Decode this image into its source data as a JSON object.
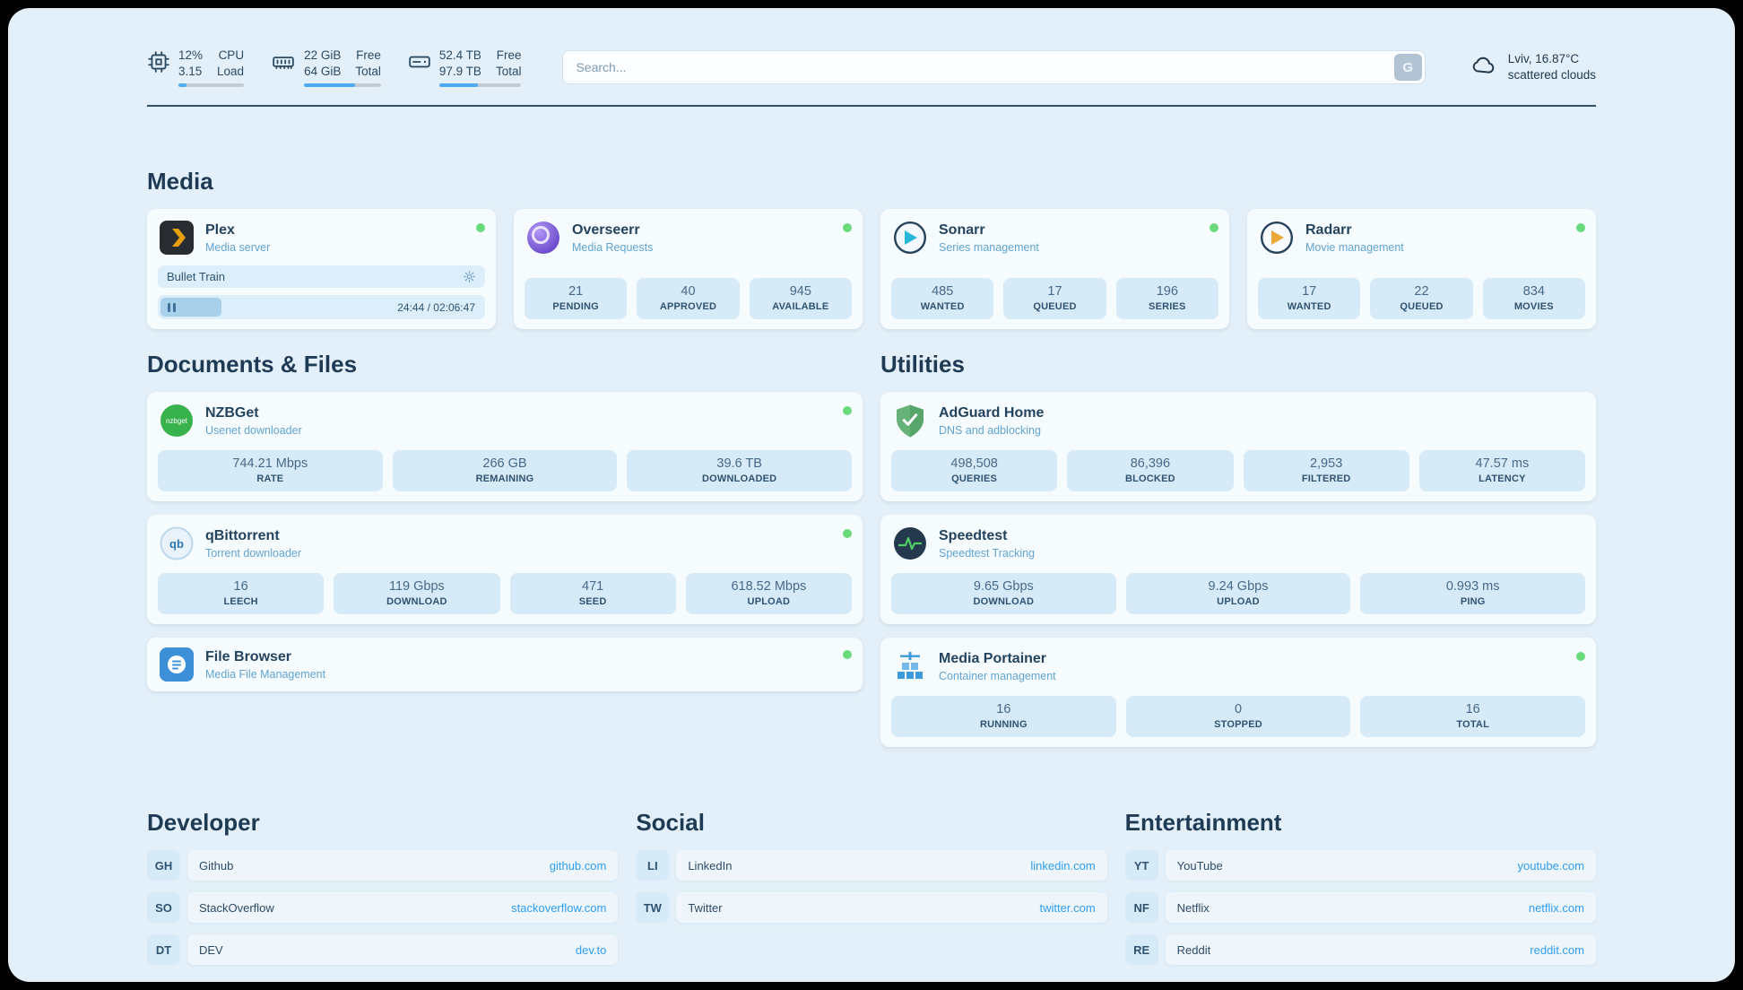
{
  "topbar": {
    "cpu": {
      "value_pct": "12%",
      "value_load": "3.15",
      "label_top": "CPU",
      "label_bottom": "Load",
      "progress": 12
    },
    "ram": {
      "value_free": "22 GiB",
      "value_total": "64 GiB",
      "label_top": "Free",
      "label_bottom": "Total",
      "progress": 66
    },
    "disk": {
      "value_free": "52.4 TB",
      "value_total": "97.9 TB",
      "label_top": "Free",
      "label_bottom": "Total",
      "progress": 47
    },
    "search": {
      "placeholder": "Search...",
      "engine_label": "G"
    },
    "weather": {
      "location": "Lviv, 16.87°C",
      "condition": "scattered clouds"
    }
  },
  "sections": {
    "media": {
      "title": "Media",
      "plex": {
        "name": "Plex",
        "subtitle": "Media server",
        "now_playing": "Bullet Train",
        "time": "24:44 / 02:06:47",
        "progress": 19
      },
      "overseerr": {
        "name": "Overseerr",
        "subtitle": "Media Requests",
        "stats": [
          {
            "value": "21",
            "label": "PENDING"
          },
          {
            "value": "40",
            "label": "APPROVED"
          },
          {
            "value": "945",
            "label": "AVAILABLE"
          }
        ]
      },
      "sonarr": {
        "name": "Sonarr",
        "subtitle": "Series management",
        "stats": [
          {
            "value": "485",
            "label": "WANTED"
          },
          {
            "value": "17",
            "label": "QUEUED"
          },
          {
            "value": "196",
            "label": "SERIES"
          }
        ]
      },
      "radarr": {
        "name": "Radarr",
        "subtitle": "Movie management",
        "stats": [
          {
            "value": "17",
            "label": "WANTED"
          },
          {
            "value": "22",
            "label": "QUEUED"
          },
          {
            "value": "834",
            "label": "MOVIES"
          }
        ]
      }
    },
    "documents": {
      "title": "Documents & Files",
      "nzbget": {
        "name": "NZBGet",
        "subtitle": "Usenet downloader",
        "stats": [
          {
            "value": "744.21 Mbps",
            "label": "RATE"
          },
          {
            "value": "266 GB",
            "label": "REMAINING"
          },
          {
            "value": "39.6 TB",
            "label": "DOWNLOADED"
          }
        ]
      },
      "qbittorrent": {
        "name": "qBittorrent",
        "subtitle": "Torrent downloader",
        "stats": [
          {
            "value": "16",
            "label": "LEECH"
          },
          {
            "value": "119 Gbps",
            "label": "DOWNLOAD"
          },
          {
            "value": "471",
            "label": "SEED"
          },
          {
            "value": "618.52 Mbps",
            "label": "UPLOAD"
          }
        ]
      },
      "filebrowser": {
        "name": "File Browser",
        "subtitle": "Media File Management"
      }
    },
    "utilities": {
      "title": "Utilities",
      "adguard": {
        "name": "AdGuard Home",
        "subtitle": "DNS and adblocking",
        "stats": [
          {
            "value": "498,508",
            "label": "QUERIES"
          },
          {
            "value": "86,396",
            "label": "BLOCKED"
          },
          {
            "value": "2,953",
            "label": "FILTERED"
          },
          {
            "value": "47.57 ms",
            "label": "LATENCY"
          }
        ]
      },
      "speedtest": {
        "name": "Speedtest",
        "subtitle": "Speedtest Tracking",
        "stats": [
          {
            "value": "9.65 Gbps",
            "label": "DOWNLOAD"
          },
          {
            "value": "9.24 Gbps",
            "label": "UPLOAD"
          },
          {
            "value": "0.993 ms",
            "label": "PING"
          }
        ]
      },
      "portainer": {
        "name": "Media Portainer",
        "subtitle": "Container management",
        "stats": [
          {
            "value": "16",
            "label": "RUNNING"
          },
          {
            "value": "0",
            "label": "STOPPED"
          },
          {
            "value": "16",
            "label": "TOTAL"
          }
        ]
      }
    },
    "developer": {
      "title": "Developer",
      "items": [
        {
          "abbr": "GH",
          "name": "Github",
          "url": "github.com"
        },
        {
          "abbr": "SO",
          "name": "StackOverflow",
          "url": "stackoverflow.com"
        },
        {
          "abbr": "DT",
          "name": "DEV",
          "url": "dev.to"
        }
      ]
    },
    "social": {
      "title": "Social",
      "items": [
        {
          "abbr": "LI",
          "name": "LinkedIn",
          "url": "linkedin.com"
        },
        {
          "abbr": "TW",
          "name": "Twitter",
          "url": "twitter.com"
        }
      ]
    },
    "entertainment": {
      "title": "Entertainment",
      "items": [
        {
          "abbr": "YT",
          "name": "YouTube",
          "url": "youtube.com"
        },
        {
          "abbr": "NF",
          "name": "Netflix",
          "url": "netflix.com"
        },
        {
          "abbr": "RE",
          "name": "Reddit",
          "url": "reddit.com"
        }
      ]
    }
  }
}
